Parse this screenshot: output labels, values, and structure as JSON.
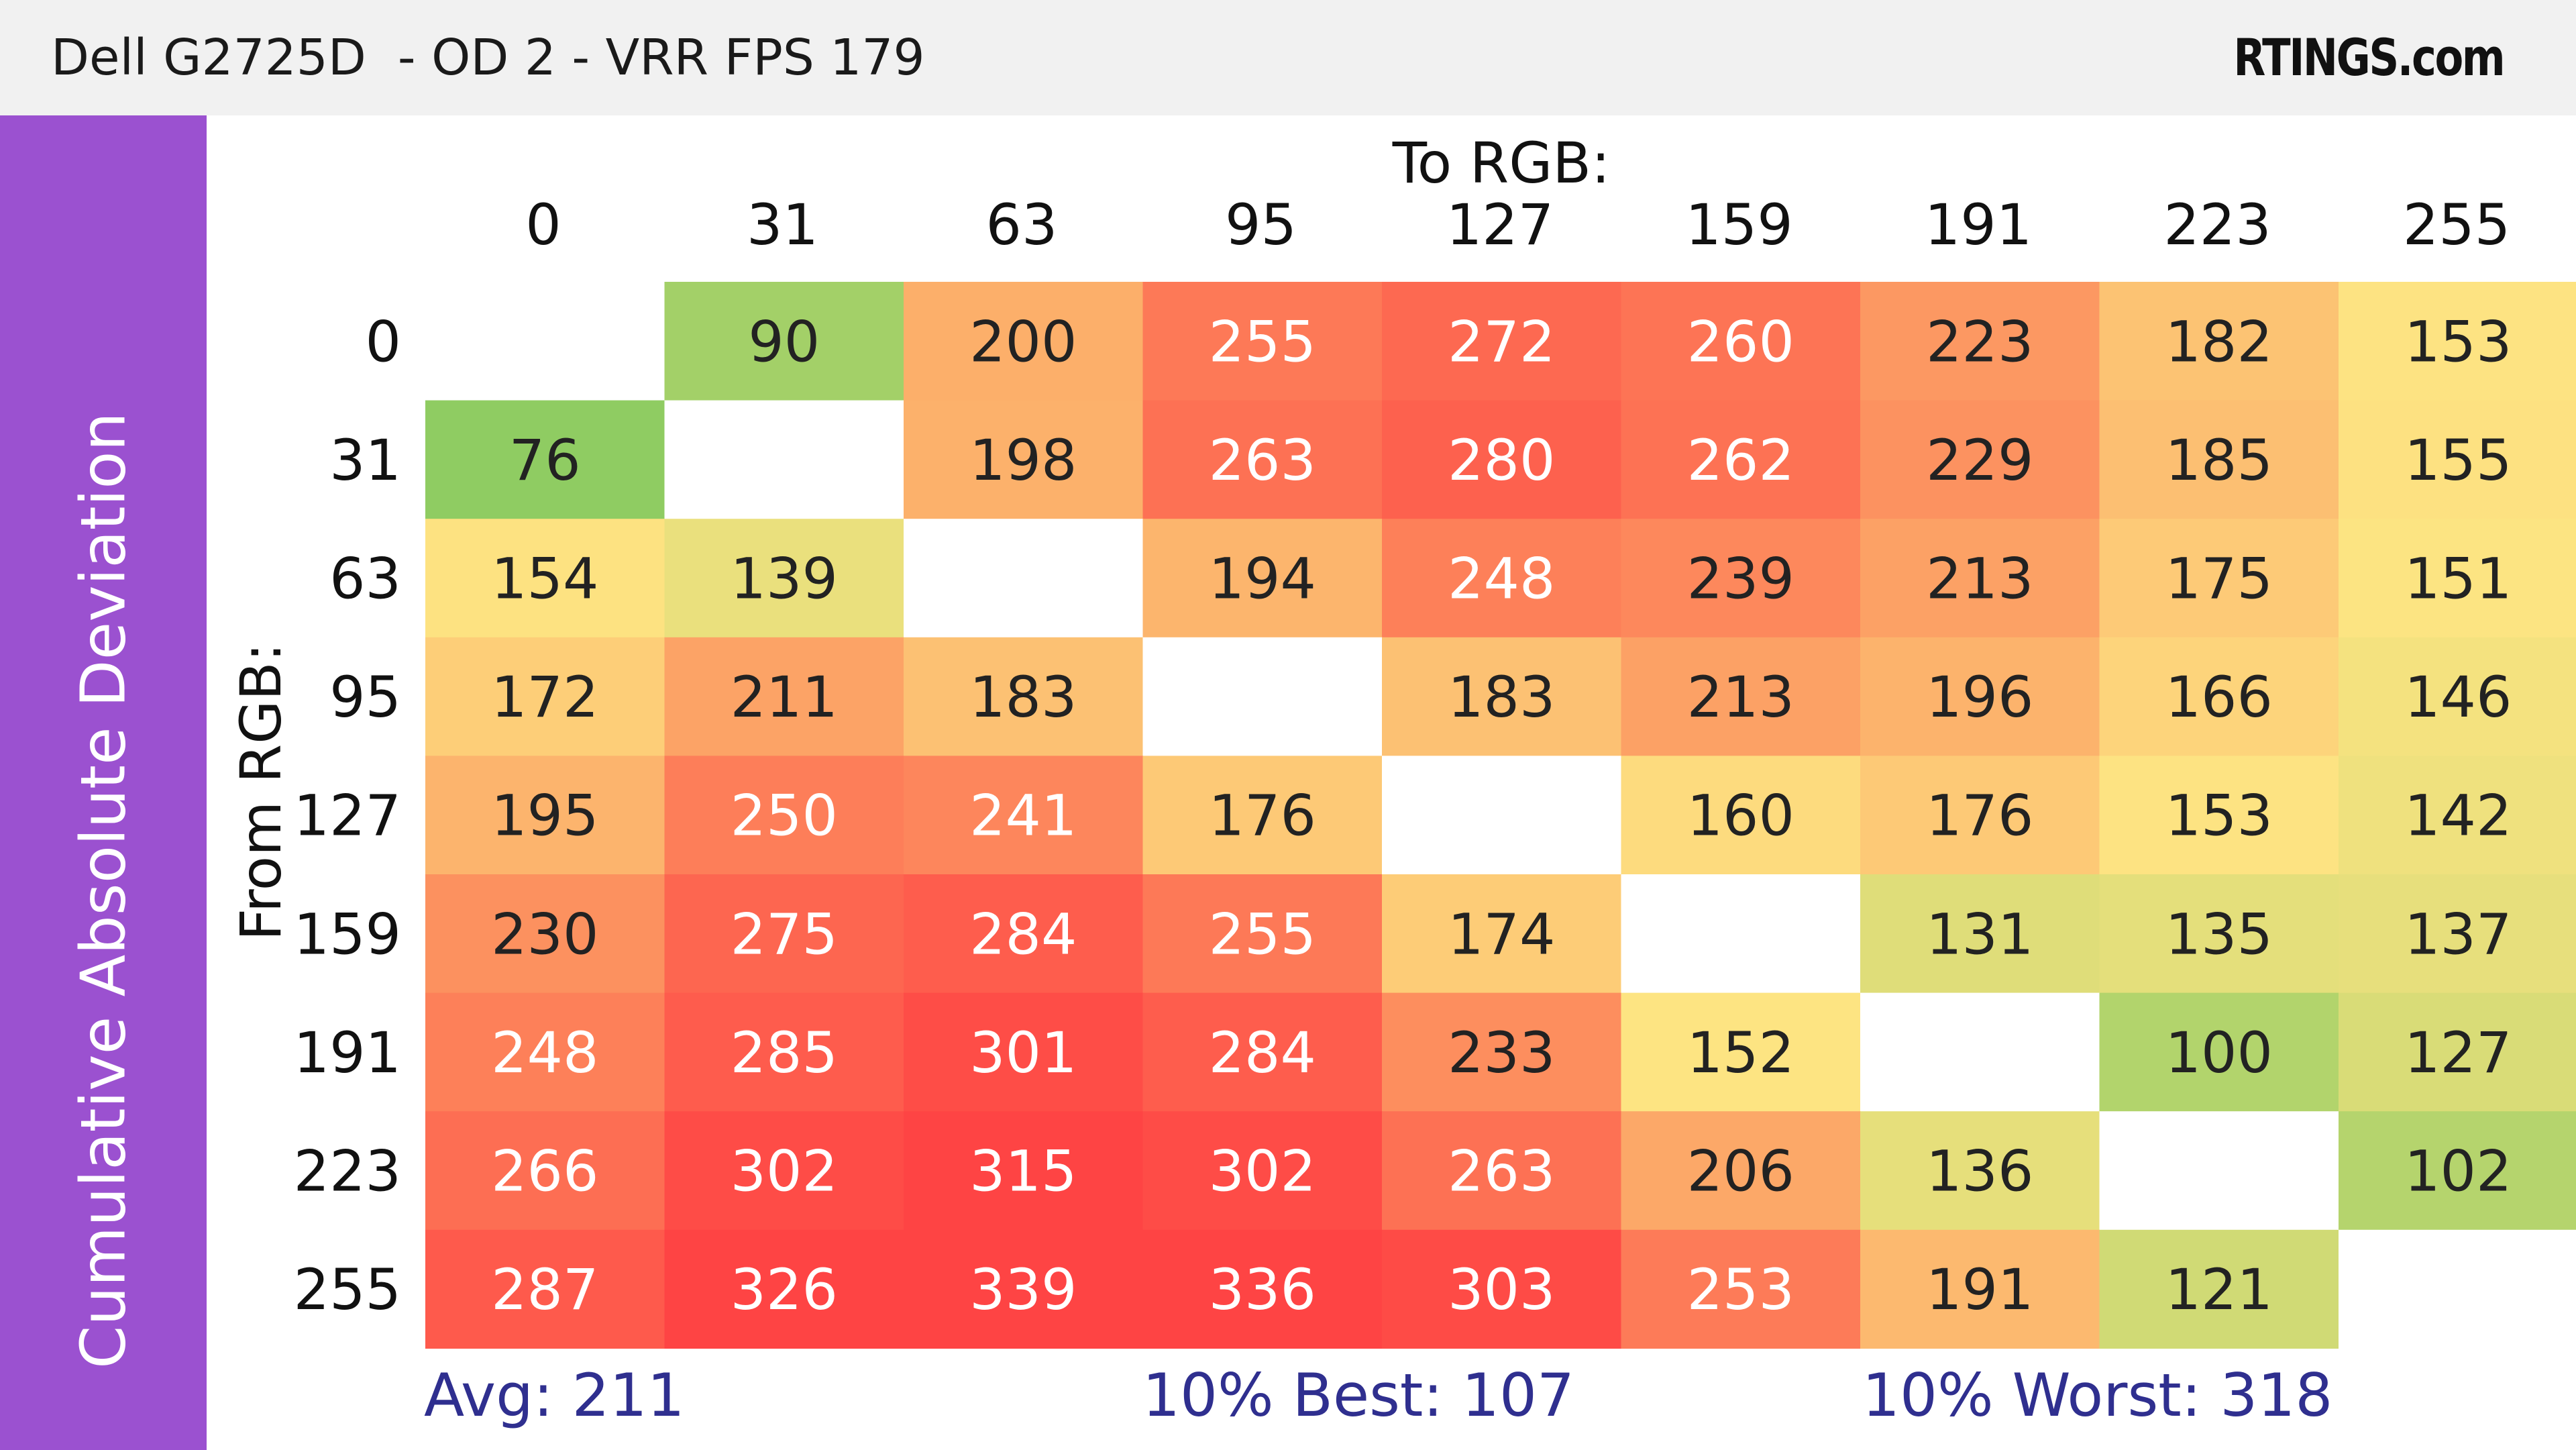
{
  "header": {
    "title": "Dell G2725D  - OD 2 - VRR FPS 179",
    "brand": "RTINGS.com"
  },
  "sidebar": {
    "label": "Cumulative Absolute Deviation"
  },
  "chart_data": {
    "type": "heatmap",
    "xlabel": "To RGB:",
    "ylabel": "From RGB:",
    "x_categories": [
      "0",
      "31",
      "63",
      "95",
      "127",
      "159",
      "191",
      "223",
      "255"
    ],
    "y_categories": [
      "0",
      "31",
      "63",
      "95",
      "127",
      "159",
      "191",
      "223",
      "255"
    ],
    "values": [
      [
        null,
        90,
        200,
        255,
        272,
        260,
        223,
        182,
        153
      ],
      [
        76,
        null,
        198,
        263,
        280,
        262,
        229,
        185,
        155
      ],
      [
        154,
        139,
        null,
        194,
        248,
        239,
        213,
        175,
        151
      ],
      [
        172,
        211,
        183,
        null,
        183,
        213,
        196,
        166,
        146
      ],
      [
        195,
        250,
        241,
        176,
        null,
        160,
        176,
        153,
        142
      ],
      [
        230,
        275,
        284,
        255,
        174,
        null,
        131,
        135,
        137
      ],
      [
        248,
        285,
        301,
        284,
        233,
        152,
        null,
        100,
        127
      ],
      [
        266,
        302,
        315,
        302,
        263,
        206,
        136,
        null,
        102
      ],
      [
        287,
        326,
        339,
        336,
        303,
        253,
        191,
        121,
        null
      ]
    ],
    "colors": {
      "best": "#8fcc62",
      "mid": "#fde482",
      "warm": "#fca968",
      "worst": "#fe4444",
      "dark_text": "#222222",
      "light_text": "#ffffff"
    },
    "stats": {
      "avg": "Avg: 211",
      "best": "10% Best: 107",
      "worst": "10% Worst: 318"
    }
  }
}
